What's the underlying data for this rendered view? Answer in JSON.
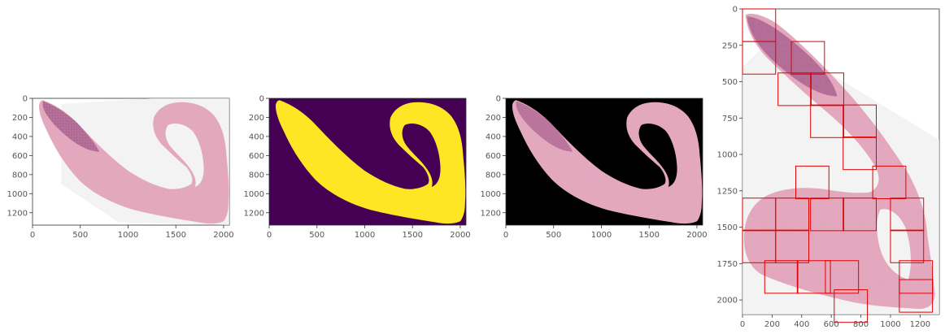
{
  "figure": {
    "panels": [
      {
        "id": "tissue",
        "xticks": [
          "0",
          "500",
          "1000",
          "1500",
          "2000"
        ],
        "yticks": [
          "0",
          "200",
          "400",
          "600",
          "800",
          "1000",
          "1200"
        ]
      },
      {
        "id": "mask",
        "xticks": [
          "0",
          "500",
          "1000",
          "1500",
          "2000"
        ],
        "yticks": [
          "0",
          "200",
          "400",
          "600",
          "800",
          "1000",
          "1200"
        ]
      },
      {
        "id": "masked-tissue",
        "xticks": [
          "0",
          "500",
          "1000",
          "1500",
          "2000"
        ],
        "yticks": [
          "0",
          "200",
          "400",
          "600",
          "800",
          "1000",
          "1200"
        ]
      },
      {
        "id": "tiles",
        "xticks": [
          "0",
          "200",
          "400",
          "600",
          "800",
          "1000",
          "1200"
        ],
        "yticks": [
          "0",
          "250",
          "500",
          "750",
          "1000",
          "1250",
          "1500",
          "1750",
          "2000"
        ]
      }
    ],
    "colors": {
      "tissue": "#e3a8bd",
      "tissue_dark": "#8a3d75",
      "mask_background": "#440154",
      "mask_foreground": "#fde725",
      "masked_background": "#000000",
      "slide_shadow": "#eeeeee",
      "tile_outline": "#e00000"
    }
  }
}
